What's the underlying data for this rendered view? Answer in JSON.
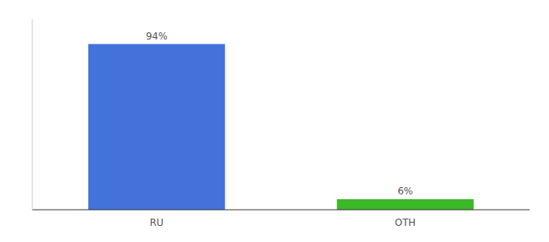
{
  "chart_data": {
    "type": "bar",
    "categories": [
      "RU",
      "OTH"
    ],
    "values": [
      94,
      6
    ],
    "value_labels": [
      "94%",
      "6%"
    ],
    "colors": [
      "#4472DB",
      "#3CB829"
    ],
    "ylim": [
      0,
      108
    ],
    "data_labels": true,
    "tick_labels": "x",
    "grid": false
  }
}
